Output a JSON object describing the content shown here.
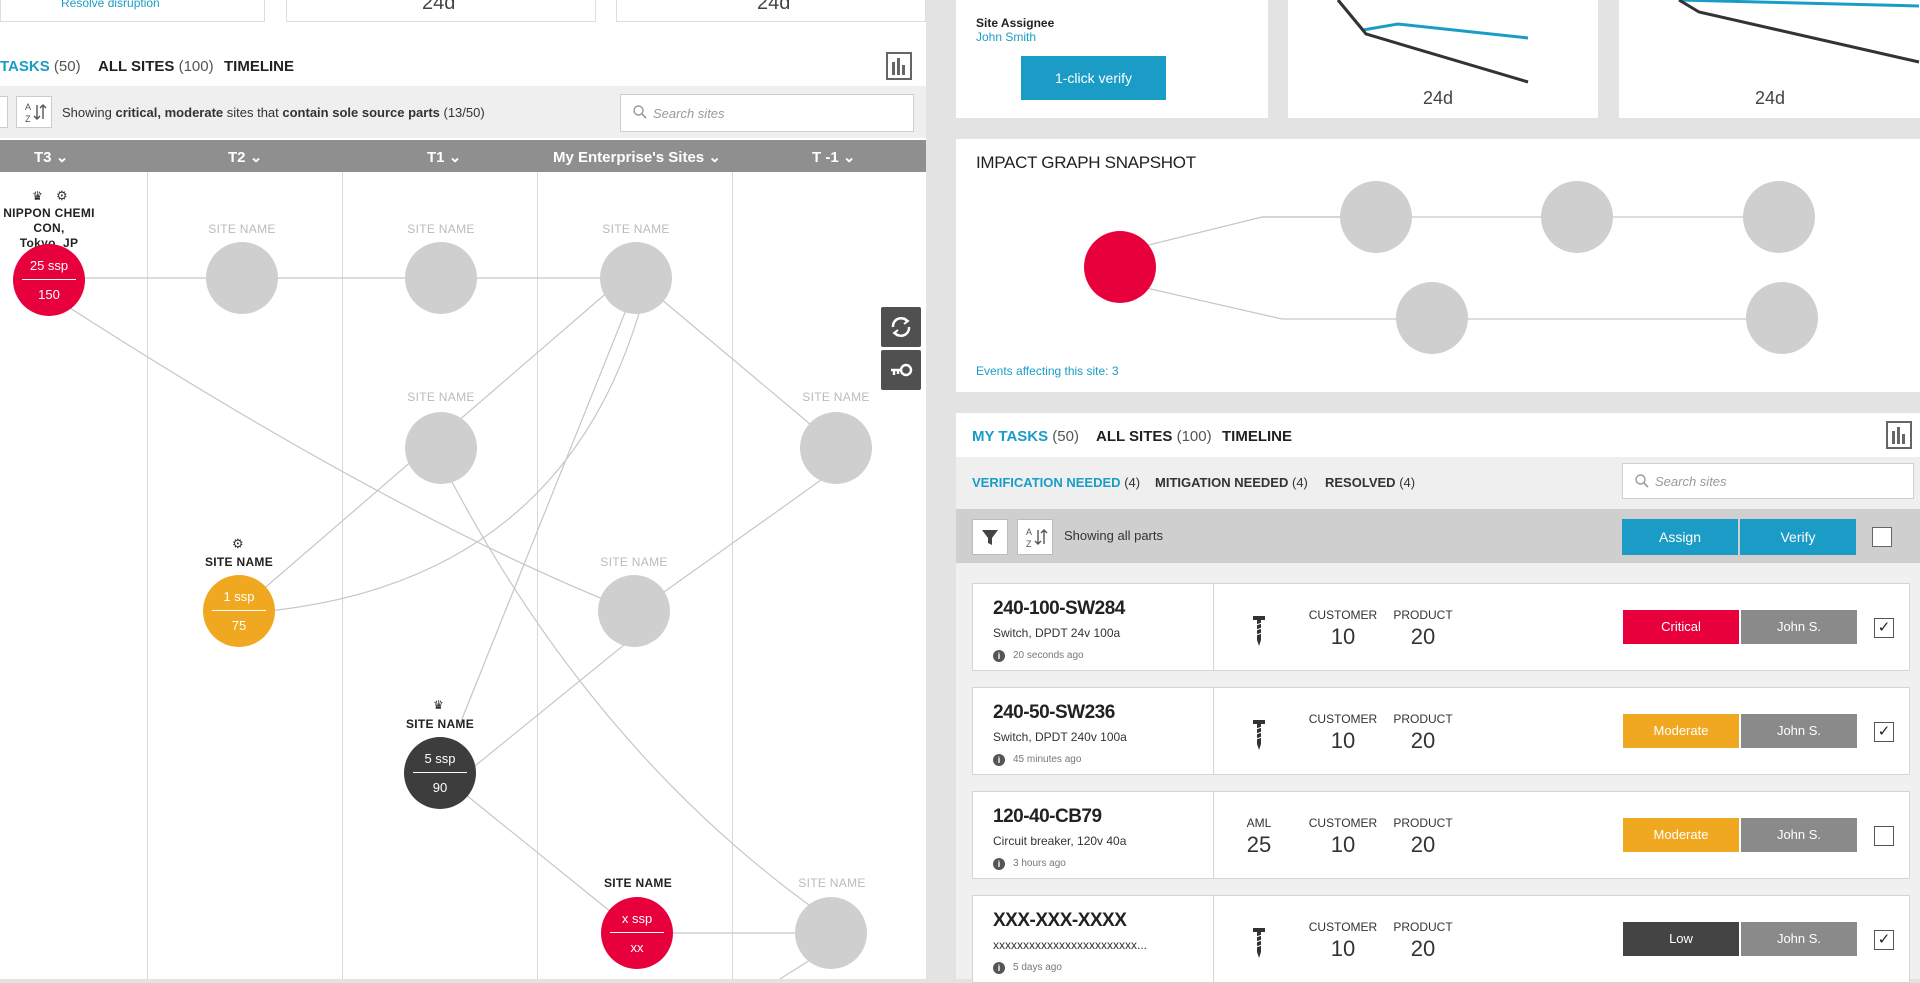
{
  "left": {
    "top_cards": {
      "resolve_link": "Resolve disruption",
      "val1": "24d",
      "val2": "24d"
    },
    "tabs": [
      {
        "label": "TASKS",
        "count": "(50)"
      },
      {
        "label": "ALL SITES",
        "count": "(100)"
      },
      {
        "label": "TIMELINE",
        "count": ""
      }
    ],
    "filter": {
      "prefix": "Showing ",
      "b1": "critical, moderate",
      "mid": " sites that ",
      "b2": "contain sole source parts",
      "suffix": " (13/50)"
    },
    "search_placeholder": "Search sites",
    "columns": [
      "T3",
      "T2",
      "T1",
      "My Enterprise's Sites",
      "T -1"
    ],
    "nodes": {
      "nippon_label1": "NIPPON CHEMI CON,",
      "nippon_label2": "Tokyo, JP",
      "nippon_top": "25 ssp",
      "nippon_bottom": "150",
      "site_name": "SITE NAME",
      "orange_top": "1 ssp",
      "orange_bottom": "75",
      "dark_top": "5 ssp",
      "dark_bottom": "90",
      "red_top": "x ssp",
      "red_bottom": "xx"
    }
  },
  "right": {
    "assignee_label": "Site Assignee",
    "assignee_name": "John Smith",
    "verify_button": "1-click verify",
    "chart_vals": [
      "24d",
      "24d"
    ],
    "impact_title": "IMPACT GRAPH SNAPSHOT",
    "events_link": "Events affecting this site: 3",
    "tabs": [
      {
        "label": "MY TASKS",
        "count": "(50)"
      },
      {
        "label": "ALL SITES",
        "count": "(100)"
      },
      {
        "label": "TIMELINE",
        "count": ""
      }
    ],
    "subtabs": [
      {
        "label": "VERIFICATION NEEDED",
        "count": "(4)"
      },
      {
        "label": "MITIGATION NEEDED",
        "count": "(4)"
      },
      {
        "label": "RESOLVED",
        "count": "(4)"
      }
    ],
    "search_placeholder": "Search sites",
    "showing": "Showing all parts",
    "assign_button": "Assign",
    "verify_button2": "Verify",
    "rows": [
      {
        "pn": "240-100-SW284",
        "desc": "Switch, DPDT 24v 100a",
        "time": "20 seconds ago",
        "aml": "",
        "customer_label": "CUSTOMER",
        "customer": "10",
        "product_label": "PRODUCT",
        "product": "20",
        "severity": "Critical",
        "assignee": "John S.",
        "checked": "✓"
      },
      {
        "pn": "240-50-SW236",
        "desc": "Switch, DPDT 240v 100a",
        "time": "45 minutes ago",
        "aml": "",
        "customer_label": "CUSTOMER",
        "customer": "10",
        "product_label": "PRODUCT",
        "product": "20",
        "severity": "Moderate",
        "assignee": "John S.",
        "checked": "✓"
      },
      {
        "pn": "120-40-CB79",
        "desc": "Circuit breaker, 120v 40a",
        "time": "3 hours ago",
        "aml_label": "AML",
        "aml": "25",
        "customer_label": "CUSTOMER",
        "customer": "10",
        "product_label": "PRODUCT",
        "product": "20",
        "severity": "Moderate",
        "assignee": "John S.",
        "checked": ""
      },
      {
        "pn": "XXX-XXX-XXXX",
        "desc": "xxxxxxxxxxxxxxxxxxxxxxxx...",
        "time": "5 days ago",
        "aml": "",
        "customer_label": "CUSTOMER",
        "customer": "10",
        "product_label": "PRODUCT",
        "product": "20",
        "severity": "Low",
        "assignee": "John S.",
        "checked": "✓"
      }
    ]
  },
  "colors": {
    "accent": "#1a9cc7",
    "critical": "#e8003d",
    "moderate": "#f0a821",
    "low": "#444444",
    "node_gray": "#cfcfcf",
    "dark_node": "#3d3d3d"
  }
}
